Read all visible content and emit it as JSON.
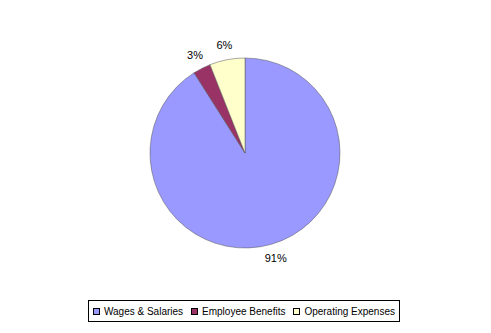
{
  "chart_data": {
    "type": "pie",
    "categories": [
      "Wages & Salaries",
      "Employee Benefits",
      "Operating Expenses"
    ],
    "values": [
      91,
      3,
      6
    ],
    "value_labels": [
      "91%",
      "3%",
      "6%"
    ],
    "colors": [
      "#9999ff",
      "#993366",
      "#ffffcc"
    ],
    "data_labels": true,
    "legend": "bottom"
  }
}
